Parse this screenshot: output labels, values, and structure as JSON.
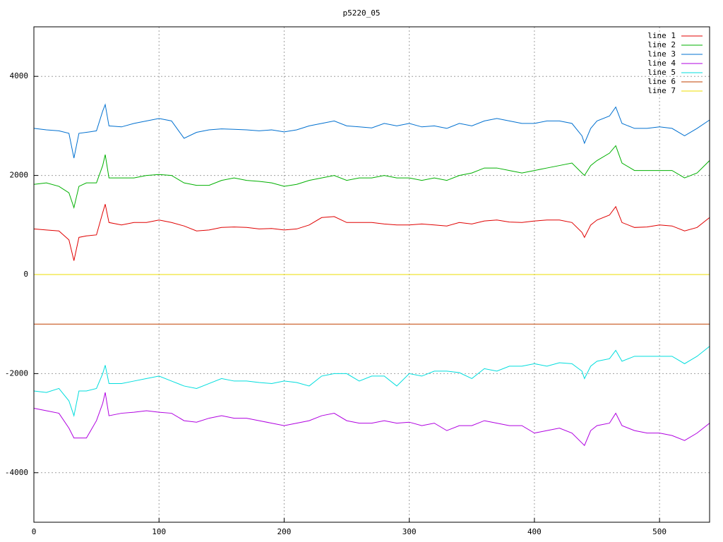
{
  "chart_data": {
    "type": "line",
    "title": "p5220_05",
    "x": [
      0,
      10,
      20,
      28,
      32,
      36,
      42,
      50,
      55,
      57,
      60,
      70,
      80,
      90,
      100,
      110,
      120,
      130,
      140,
      150,
      160,
      170,
      180,
      190,
      200,
      210,
      220,
      230,
      240,
      250,
      260,
      270,
      280,
      290,
      300,
      310,
      320,
      330,
      340,
      350,
      360,
      370,
      380,
      390,
      400,
      410,
      420,
      430,
      438,
      440,
      445,
      450,
      460,
      465,
      470,
      480,
      490,
      500,
      510,
      520,
      530,
      540
    ],
    "xlim": [
      0,
      540
    ],
    "xticks": [
      0,
      100,
      200,
      300,
      400,
      500
    ],
    "ylim": [
      -5000,
      5000
    ],
    "yticks": [
      -4000,
      -2000,
      0,
      2000,
      4000
    ],
    "grid": true,
    "legend": "top right",
    "series": [
      {
        "name": "line 1",
        "color": "#e00000",
        "values": [
          920,
          900,
          880,
          700,
          280,
          750,
          780,
          800,
          1250,
          1420,
          1050,
          1000,
          1050,
          1050,
          1100,
          1050,
          980,
          880,
          900,
          950,
          960,
          950,
          920,
          930,
          900,
          920,
          1000,
          1150,
          1170,
          1050,
          1050,
          1050,
          1020,
          1000,
          1000,
          1020,
          1000,
          980,
          1050,
          1020,
          1080,
          1100,
          1060,
          1050,
          1080,
          1100,
          1100,
          1050,
          850,
          750,
          1000,
          1100,
          1200,
          1370,
          1050,
          950,
          960,
          1000,
          980,
          880,
          950,
          1150
        ]
      },
      {
        "name": "line 2",
        "color": "#00b000",
        "values": [
          1820,
          1850,
          1780,
          1650,
          1350,
          1780,
          1850,
          1850,
          2200,
          2420,
          1950,
          1950,
          1950,
          2000,
          2020,
          2000,
          1850,
          1800,
          1800,
          1900,
          1950,
          1900,
          1880,
          1850,
          1780,
          1820,
          1900,
          1950,
          2000,
          1900,
          1950,
          1950,
          2000,
          1950,
          1950,
          1900,
          1950,
          1900,
          2000,
          2050,
          2150,
          2150,
          2100,
          2050,
          2100,
          2150,
          2200,
          2250,
          2050,
          2000,
          2200,
          2300,
          2450,
          2600,
          2250,
          2100,
          2100,
          2100,
          2100,
          1950,
          2050,
          2300
        ]
      },
      {
        "name": "line 3",
        "color": "#0070d0",
        "values": [
          2950,
          2920,
          2900,
          2850,
          2350,
          2850,
          2870,
          2900,
          3300,
          3430,
          3000,
          2980,
          3050,
          3100,
          3150,
          3100,
          2750,
          2870,
          2920,
          2940,
          2930,
          2920,
          2900,
          2920,
          2880,
          2920,
          3000,
          3050,
          3100,
          3000,
          2980,
          2960,
          3050,
          3000,
          3050,
          2980,
          3000,
          2950,
          3050,
          3000,
          3100,
          3150,
          3100,
          3050,
          3050,
          3100,
          3100,
          3050,
          2800,
          2650,
          2950,
          3100,
          3200,
          3380,
          3050,
          2950,
          2950,
          2980,
          2950,
          2800,
          2950,
          3120
        ]
      },
      {
        "name": "line 4",
        "color": "#b000e0",
        "values": [
          -2700,
          -2750,
          -2800,
          -3100,
          -3300,
          -3300,
          -3300,
          -2950,
          -2600,
          -2380,
          -2850,
          -2800,
          -2780,
          -2750,
          -2780,
          -2800,
          -2950,
          -2980,
          -2900,
          -2850,
          -2900,
          -2900,
          -2950,
          -3000,
          -3050,
          -3000,
          -2950,
          -2850,
          -2800,
          -2950,
          -3000,
          -3000,
          -2950,
          -3000,
          -2980,
          -3050,
          -3000,
          -3150,
          -3050,
          -3050,
          -2950,
          -3000,
          -3050,
          -3050,
          -3200,
          -3150,
          -3100,
          -3200,
          -3400,
          -3450,
          -3150,
          -3050,
          -3000,
          -2800,
          -3050,
          -3150,
          -3200,
          -3200,
          -3250,
          -3350,
          -3200,
          -3000
        ]
      },
      {
        "name": "line 5",
        "color": "#00dddd",
        "values": [
          -2350,
          -2380,
          -2300,
          -2550,
          -2850,
          -2350,
          -2350,
          -2300,
          -2000,
          -1830,
          -2200,
          -2200,
          -2150,
          -2100,
          -2050,
          -2150,
          -2250,
          -2300,
          -2200,
          -2100,
          -2150,
          -2150,
          -2180,
          -2200,
          -2150,
          -2180,
          -2250,
          -2050,
          -2000,
          -2000,
          -2150,
          -2050,
          -2050,
          -2250,
          -2000,
          -2050,
          -1950,
          -1950,
          -1980,
          -2100,
          -1900,
          -1950,
          -1850,
          -1850,
          -1800,
          -1850,
          -1780,
          -1800,
          -1950,
          -2100,
          -1850,
          -1750,
          -1700,
          -1530,
          -1750,
          -1650,
          -1650,
          -1650,
          -1650,
          -1800,
          -1650,
          -1450
        ]
      },
      {
        "name": "line 6",
        "color": "#c04000",
        "values": [
          -1000,
          -1000,
          -1000,
          -1000,
          -1000,
          -1000,
          -1000,
          -1000,
          -1000,
          -1000,
          -1000,
          -1000,
          -1000,
          -1000,
          -1000,
          -1000,
          -1000,
          -1000,
          -1000,
          -1000,
          -1000,
          -1000,
          -1000,
          -1000,
          -1000,
          -1000,
          -1000,
          -1000,
          -1000,
          -1000,
          -1000,
          -1000,
          -1000,
          -1000,
          -1000,
          -1000,
          -1000,
          -1000,
          -1000,
          -1000,
          -1000,
          -1000,
          -1000,
          -1000,
          -1000,
          -1000,
          -1000,
          -1000,
          -1000,
          -1000,
          -1000,
          -1000,
          -1000,
          -1000,
          -1000,
          -1000,
          -1000,
          -1000,
          -1000,
          -1000,
          -1000,
          -1000
        ]
      },
      {
        "name": "line 7",
        "color": "#eedd00",
        "values": [
          0,
          0,
          0,
          0,
          0,
          0,
          0,
          0,
          0,
          0,
          0,
          0,
          0,
          0,
          0,
          0,
          0,
          0,
          0,
          0,
          0,
          0,
          0,
          0,
          0,
          0,
          0,
          0,
          0,
          0,
          0,
          0,
          0,
          0,
          0,
          0,
          0,
          0,
          0,
          0,
          0,
          0,
          0,
          0,
          0,
          0,
          0,
          0,
          0,
          0,
          0,
          0,
          0,
          0,
          0,
          0,
          0,
          0,
          0,
          0,
          0,
          0
        ]
      }
    ]
  }
}
